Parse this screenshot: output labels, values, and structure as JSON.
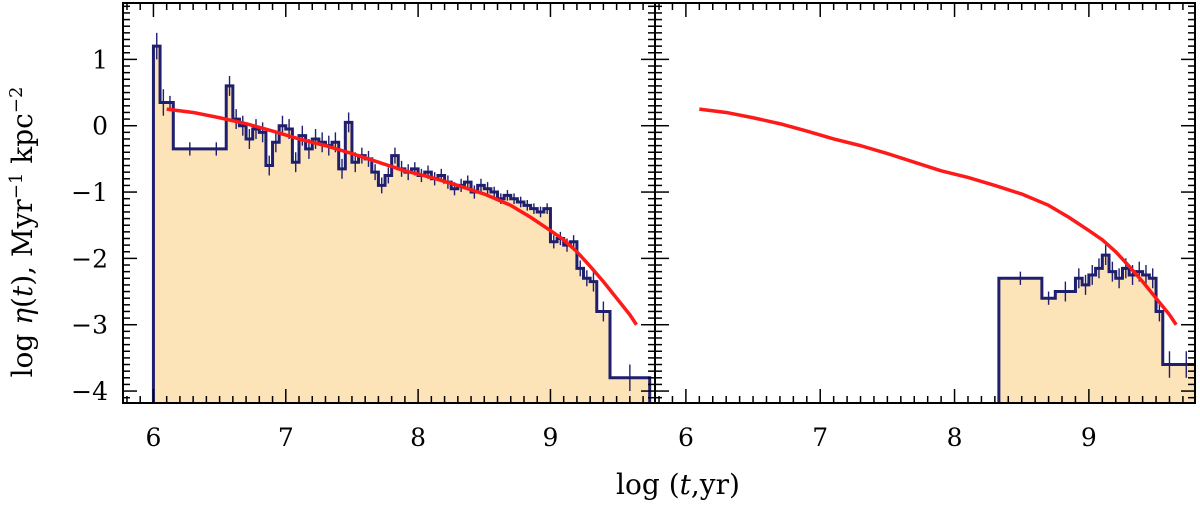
{
  "chart_data": {
    "type": "histogram-step",
    "layout": "two panels side by side, shared y-axis",
    "xlabel": "log (t,yr)",
    "ylabel": "log η(t), Myr⁻¹ kpc⁻²",
    "ylabel_parts": {
      "pre": "log ",
      "eta": "η",
      "t_open": "(",
      "t": "t",
      "t_close": "),",
      "unit1": " Myr",
      "sup1": "−1",
      "unit2": " kpc",
      "sup2": "−2"
    },
    "xlabel_parts": {
      "pre": "log ",
      "open": "(",
      "t": "t",
      "rest": ",yr",
      "close": ")"
    },
    "xlim": [
      5.77,
      9.79
    ],
    "ylim": [
      -4.18,
      1.85
    ],
    "x_ticks": [
      "6",
      "7",
      "8",
      "9"
    ],
    "y_ticks": [
      "1",
      "0",
      "−1",
      "−2",
      "−3",
      "−4"
    ],
    "y_tick_values": [
      1,
      0,
      -1,
      -2,
      -3,
      -4
    ],
    "x_tick_values": [
      6,
      7,
      8,
      9
    ],
    "grid": false,
    "colors": {
      "histogram": "#1f1f6e",
      "model": "#ff1a1a",
      "fill": "#fde3b8",
      "axes": "#000000"
    },
    "panels": [
      {
        "id": "left",
        "histogram": {
          "edges": [
            6.0,
            6.05,
            6.1,
            6.15,
            6.4,
            6.55,
            6.6,
            6.65,
            6.7,
            6.75,
            6.8,
            6.85,
            6.9,
            6.95,
            7.0,
            7.05,
            7.1,
            7.15,
            7.2,
            7.25,
            7.3,
            7.35,
            7.4,
            7.45,
            7.5,
            7.55,
            7.6,
            7.65,
            7.7,
            7.75,
            7.8,
            7.85,
            7.9,
            7.95,
            8.0,
            8.05,
            8.1,
            8.15,
            8.2,
            8.25,
            8.3,
            8.35,
            8.4,
            8.45,
            8.5,
            8.55,
            8.6,
            8.65,
            8.7,
            8.75,
            8.8,
            8.85,
            8.9,
            8.95,
            9.0,
            9.05,
            9.1,
            9.15,
            9.2,
            9.25,
            9.3,
            9.35,
            9.45,
            9.75
          ],
          "values": [
            1.2,
            0.35,
            0.35,
            -0.35,
            -0.35,
            0.6,
            0.1,
            0.0,
            -0.2,
            -0.05,
            -0.1,
            -0.6,
            -0.25,
            0.0,
            -0.05,
            -0.55,
            -0.15,
            -0.35,
            -0.2,
            -0.25,
            -0.3,
            -0.25,
            -0.65,
            0.05,
            -0.55,
            -0.45,
            -0.5,
            -0.7,
            -0.9,
            -0.75,
            -0.45,
            -0.65,
            -0.7,
            -0.65,
            -0.75,
            -0.7,
            -0.8,
            -0.75,
            -0.85,
            -0.95,
            -0.9,
            -0.85,
            -1.0,
            -0.9,
            -0.95,
            -1.0,
            -1.1,
            -1.05,
            -1.1,
            -1.15,
            -1.2,
            -1.25,
            -1.3,
            -1.25,
            -1.75,
            -1.7,
            -1.8,
            -1.75,
            -2.15,
            -2.3,
            -2.35,
            -2.8,
            -3.8
          ],
          "errors": [
            0.2,
            0.2,
            0.1,
            0.1,
            0.1,
            0.15,
            0.15,
            0.15,
            0.15,
            0.15,
            0.15,
            0.15,
            0.15,
            0.15,
            0.15,
            0.15,
            0.15,
            0.15,
            0.15,
            0.15,
            0.15,
            0.15,
            0.15,
            0.15,
            0.15,
            0.12,
            0.12,
            0.12,
            0.12,
            0.12,
            0.12,
            0.12,
            0.12,
            0.1,
            0.1,
            0.1,
            0.1,
            0.1,
            0.1,
            0.1,
            0.1,
            0.1,
            0.1,
            0.1,
            0.1,
            0.08,
            0.08,
            0.08,
            0.08,
            0.08,
            0.08,
            0.08,
            0.08,
            0.08,
            0.1,
            0.1,
            0.1,
            0.1,
            0.12,
            0.12,
            0.15,
            0.15,
            0.2
          ]
        },
        "model": {
          "x": [
            6.1,
            6.3,
            6.5,
            6.7,
            6.9,
            7.1,
            7.3,
            7.5,
            7.7,
            7.9,
            8.1,
            8.3,
            8.5,
            8.7,
            8.85,
            9.0,
            9.1,
            9.2,
            9.3,
            9.4,
            9.5,
            9.6,
            9.65
          ],
          "y": [
            0.25,
            0.2,
            0.12,
            0.03,
            -0.08,
            -0.2,
            -0.3,
            -0.42,
            -0.55,
            -0.68,
            -0.78,
            -0.9,
            -1.03,
            -1.2,
            -1.38,
            -1.58,
            -1.72,
            -1.9,
            -2.12,
            -2.35,
            -2.6,
            -2.85,
            -3.0
          ]
        }
      },
      {
        "id": "right",
        "histogram": {
          "edges": [
            8.33,
            8.65,
            8.75,
            8.9,
            8.95,
            9.0,
            9.05,
            9.1,
            9.15,
            9.2,
            9.25,
            9.3,
            9.35,
            9.4,
            9.45,
            9.5,
            9.55,
            9.65,
            9.8
          ],
          "values": [
            -2.3,
            -2.6,
            -2.5,
            -2.3,
            -2.4,
            -2.25,
            -2.15,
            -1.95,
            -2.2,
            -2.3,
            -2.15,
            -2.25,
            -2.2,
            -2.25,
            -2.3,
            -2.8,
            -3.6,
            -3.6
          ],
          "errors": [
            0.1,
            0.1,
            0.15,
            0.15,
            0.15,
            0.15,
            0.15,
            0.15,
            0.15,
            0.15,
            0.15,
            0.15,
            0.15,
            0.15,
            0.15,
            0.15,
            0.2,
            0.2
          ]
        },
        "model": {
          "x": [
            6.1,
            6.3,
            6.5,
            6.7,
            6.9,
            7.1,
            7.3,
            7.5,
            7.7,
            7.9,
            8.1,
            8.3,
            8.5,
            8.7,
            8.85,
            9.0,
            9.1,
            9.2,
            9.3,
            9.4,
            9.5,
            9.6,
            9.65
          ],
          "y": [
            0.25,
            0.2,
            0.12,
            0.03,
            -0.08,
            -0.2,
            -0.3,
            -0.42,
            -0.55,
            -0.68,
            -0.78,
            -0.9,
            -1.03,
            -1.2,
            -1.38,
            -1.58,
            -1.72,
            -1.9,
            -2.12,
            -2.35,
            -2.6,
            -2.85,
            -3.0
          ]
        }
      }
    ]
  }
}
